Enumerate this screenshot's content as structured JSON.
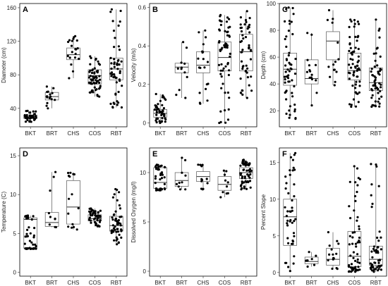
{
  "chart_data": [
    {
      "panel": "A",
      "type": "box",
      "ylabel": "Diameter (cm)",
      "categories": [
        "BKT",
        "BRT",
        "CHS",
        "COS",
        "RBT"
      ],
      "yticks": [
        40,
        80,
        120,
        160
      ],
      "ylim": [
        18,
        165
      ],
      "boxes": [
        {
          "min": 24,
          "q1": 28,
          "median": 30,
          "q3": 32,
          "max": 37,
          "n": 40
        },
        {
          "min": 40,
          "q1": 50,
          "median": 54,
          "q3": 59,
          "max": 66,
          "n": 15
        },
        {
          "min": 76,
          "q1": 98,
          "median": 104,
          "q3": 112,
          "max": 126,
          "n": 20
        },
        {
          "min": 54,
          "q1": 69,
          "median": 79,
          "q3": 86,
          "max": 102,
          "n": 60
        },
        {
          "min": 41,
          "q1": 74,
          "median": 87,
          "q3": 100,
          "max": 158,
          "n": 55
        }
      ]
    },
    {
      "panel": "B",
      "type": "box",
      "ylabel": "Velocity (m/s)",
      "categories": [
        "BKT",
        "BRT",
        "CHS",
        "COS",
        "RBT"
      ],
      "yticks": [
        0.0,
        0.2,
        0.4,
        0.6
      ],
      "ylim": [
        -0.02,
        0.62
      ],
      "boxes": [
        {
          "min": 0.0,
          "q1": 0.03,
          "median": 0.05,
          "q3": 0.07,
          "max": 0.15,
          "n": 45
        },
        {
          "min": 0.13,
          "q1": 0.26,
          "median": 0.29,
          "q3": 0.31,
          "max": 0.42,
          "n": 12
        },
        {
          "min": 0.1,
          "q1": 0.26,
          "median": 0.3,
          "q3": 0.37,
          "max": 0.48,
          "n": 20
        },
        {
          "min": 0.0,
          "q1": 0.27,
          "median": 0.34,
          "q3": 0.42,
          "max": 0.56,
          "n": 60
        },
        {
          "min": 0.13,
          "q1": 0.27,
          "median": 0.37,
          "q3": 0.46,
          "max": 0.58,
          "n": 50
        }
      ]
    },
    {
      "panel": "C",
      "type": "box",
      "ylabel": "Depth (cm)",
      "categories": [
        "BKT",
        "BRT",
        "CHS",
        "COS",
        "RBT"
      ],
      "yticks": [
        20,
        40,
        60,
        80,
        100
      ],
      "ylim": [
        8,
        100
      ],
      "boxes": [
        {
          "min": 14,
          "q1": 39,
          "median": 51,
          "q3": 63,
          "max": 97,
          "n": 55
        },
        {
          "min": 24,
          "q1": 40,
          "median": 44,
          "q3": 58,
          "max": 78,
          "n": 15
        },
        {
          "min": 39,
          "q1": 58,
          "median": 72,
          "q3": 79,
          "max": 95,
          "n": 15
        },
        {
          "min": 23,
          "q1": 43,
          "median": 50,
          "q3": 63,
          "max": 88,
          "n": 65
        },
        {
          "min": 23,
          "q1": 35,
          "median": 41,
          "q3": 52,
          "max": 88,
          "n": 55
        }
      ]
    },
    {
      "panel": "D",
      "type": "box",
      "ylabel": "Temperature (C)",
      "categories": [
        "BKT",
        "BRT",
        "CHS",
        "COS",
        "RBT"
      ],
      "yticks": [
        0,
        5,
        10,
        15
      ],
      "ylim": [
        -0.5,
        16
      ],
      "boxes": [
        {
          "min": 3.0,
          "q1": 3.1,
          "median": 6.8,
          "q3": 7.0,
          "max": 7.3,
          "n": 40
        },
        {
          "min": 5.8,
          "q1": 5.9,
          "median": 6.4,
          "q3": 7.7,
          "max": 12.9,
          "n": 10
        },
        {
          "min": 5.5,
          "q1": 6.2,
          "median": 8.4,
          "q3": 11.8,
          "max": 12.8,
          "n": 15
        },
        {
          "min": 5.9,
          "q1": 6.6,
          "median": 6.9,
          "q3": 7.4,
          "max": 8.2,
          "n": 45
        },
        {
          "min": 3.6,
          "q1": 5.3,
          "median": 6.0,
          "q3": 7.2,
          "max": 10.7,
          "n": 55
        }
      ]
    },
    {
      "panel": "E",
      "type": "box",
      "ylabel": "Dissolved Oxygen (mg/l)",
      "categories": [
        "BKT",
        "BRT",
        "CHS",
        "COS",
        "RBT"
      ],
      "yticks": [
        0,
        5,
        10
      ],
      "ylim": [
        -0.5,
        12.5
      ],
      "boxes": [
        {
          "min": 8.2,
          "q1": 8.4,
          "median": 9.0,
          "q3": 10.5,
          "max": 10.8,
          "n": 40
        },
        {
          "min": 8.3,
          "q1": 8.6,
          "median": 9.2,
          "q3": 10.0,
          "max": 11.5,
          "n": 10
        },
        {
          "min": 8.3,
          "q1": 9.1,
          "median": 9.6,
          "q3": 10.1,
          "max": 10.8,
          "n": 12
        },
        {
          "min": 7.5,
          "q1": 8.2,
          "median": 8.8,
          "q3": 9.6,
          "max": 10.2,
          "n": 10
        },
        {
          "min": 8.3,
          "q1": 9.4,
          "median": 10.0,
          "q3": 10.5,
          "max": 11.3,
          "n": 55
        }
      ]
    },
    {
      "panel": "F",
      "type": "box",
      "ylabel": "Percent Slope",
      "categories": [
        "BKT",
        "BRT",
        "CHS",
        "COS",
        "RBT"
      ],
      "yticks": [
        0,
        5,
        10,
        15
      ],
      "ylim": [
        -0.5,
        17
      ],
      "boxes": [
        {
          "min": 0.2,
          "q1": 3.7,
          "median": 7.6,
          "q3": 10.0,
          "max": 16.3,
          "n": 45
        },
        {
          "min": 0.8,
          "q1": 1.2,
          "median": 1.5,
          "q3": 2.1,
          "max": 2.8,
          "n": 8
        },
        {
          "min": 0.5,
          "q1": 1.0,
          "median": 1.8,
          "q3": 3.3,
          "max": 5.5,
          "n": 15
        },
        {
          "min": 0.1,
          "q1": 0.8,
          "median": 2.2,
          "q3": 5.6,
          "max": 14.5,
          "n": 60
        },
        {
          "min": 0.1,
          "q1": 1.0,
          "median": 1.8,
          "q3": 3.6,
          "max": 14.8,
          "n": 55
        }
      ]
    }
  ],
  "style": {
    "box_stroke": "#555555",
    "point_color": "#000000",
    "panel_border": "#000000",
    "background": "#ffffff"
  }
}
